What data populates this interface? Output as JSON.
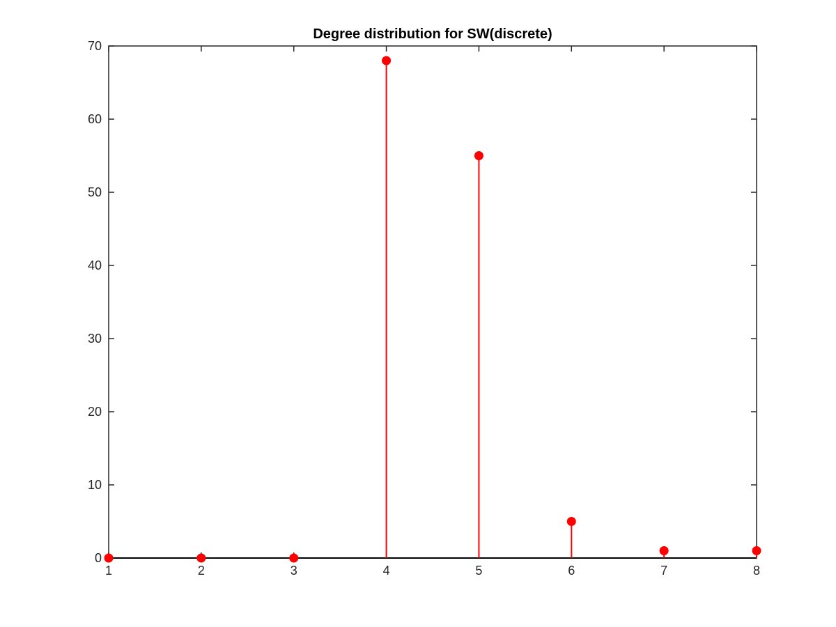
{
  "chart_data": {
    "type": "stem",
    "title": "Degree distribution for SW(discrete)",
    "xlabel": "",
    "ylabel": "",
    "x": [
      1,
      2,
      3,
      4,
      5,
      6,
      7,
      8
    ],
    "values": [
      0,
      0,
      0,
      68,
      55,
      5,
      1,
      1
    ],
    "xlim": [
      1,
      8
    ],
    "ylim": [
      0,
      70
    ],
    "xticks": [
      1,
      2,
      3,
      4,
      5,
      6,
      7,
      8
    ],
    "yticks": [
      0,
      10,
      20,
      30,
      40,
      50,
      60,
      70
    ],
    "grid": false,
    "legend": "none",
    "colors": {
      "series": "#ff0000",
      "axes": "#262626",
      "baseline": "#000000"
    }
  }
}
